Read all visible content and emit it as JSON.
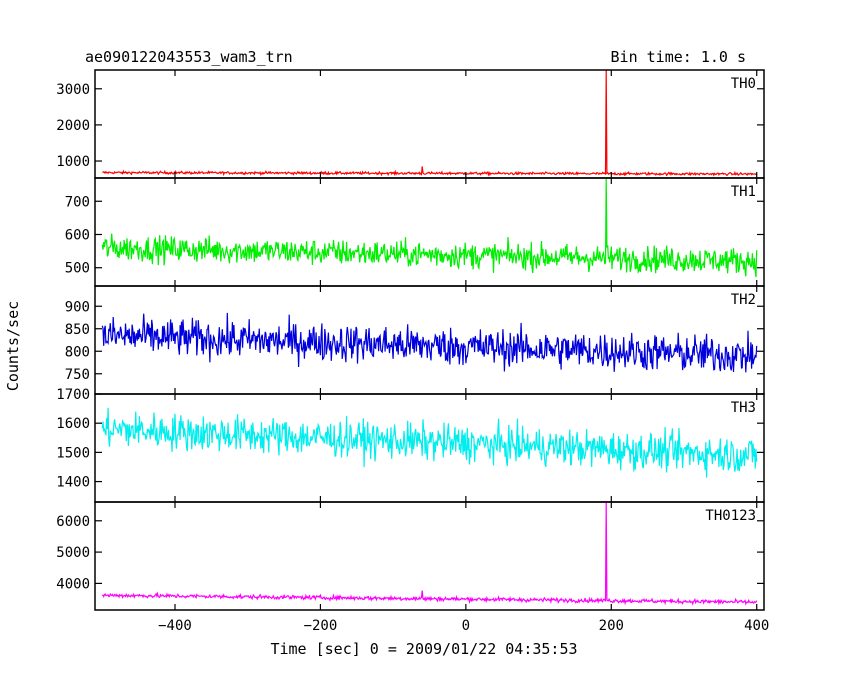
{
  "title_left": "ae090122043553_wam3_trn",
  "title_right": "Bin time: 1.0 s",
  "ylabel": "Counts/sec",
  "xlabel": "Time [sec] 0 = 2009/01/22 04:35:53",
  "chart_data": {
    "type": "line",
    "x_range": [
      -510,
      410
    ],
    "x_ticks": [
      -400,
      -200,
      0,
      200,
      400
    ],
    "x_tick_labels": [
      "−400",
      "−200",
      "0",
      "200",
      "400"
    ],
    "x_data_range": [
      -500,
      400
    ],
    "bin_time": 1.0,
    "grid": false,
    "panels": [
      {
        "name": "TH0",
        "color": "#ff0000",
        "ylim": [
          530,
          3520
        ],
        "y_ticks": [
          1000,
          2000,
          3000
        ],
        "y_tick_labels": [
          "1000",
          "2000",
          "3000"
        ],
        "baseline_start": 680,
        "baseline_end": 640,
        "noise": 25,
        "spikes": [
          {
            "x": -60,
            "y": 850
          },
          {
            "x": 193,
            "y": 3520
          }
        ]
      },
      {
        "name": "TH1",
        "color": "#00ee00",
        "ylim": [
          445,
          770
        ],
        "y_ticks": [
          500,
          600,
          700
        ],
        "y_tick_labels": [
          "500",
          "600",
          "700"
        ],
        "baseline_start": 560,
        "baseline_end": 520,
        "noise": 28,
        "spikes": [
          {
            "x": 193,
            "y": 770
          }
        ]
      },
      {
        "name": "TH2",
        "color": "#0000dd",
        "ylim": [
          705,
          945
        ],
        "y_ticks": [
          750,
          800,
          850,
          900
        ],
        "y_tick_labels": [
          "750",
          "800",
          "850",
          "900"
        ],
        "baseline_start": 835,
        "baseline_end": 790,
        "noise": 30,
        "spikes": []
      },
      {
        "name": "TH3",
        "color": "#00eeee",
        "ylim": [
          1330,
          1700
        ],
        "y_ticks": [
          1400,
          1500,
          1600,
          1700
        ],
        "y_tick_labels": [
          "1400",
          "1500",
          "1600",
          "1700"
        ],
        "baseline_start": 1580,
        "baseline_end": 1490,
        "noise": 45,
        "spikes": []
      },
      {
        "name": "TH0123",
        "color": "#ff00ff",
        "ylim": [
          3150,
          6600
        ],
        "y_ticks": [
          4000,
          5000,
          6000
        ],
        "y_tick_labels": [
          "4000",
          "5000",
          "6000"
        ],
        "baseline_start": 3620,
        "baseline_end": 3400,
        "noise": 45,
        "spikes": [
          {
            "x": -60,
            "y": 3770
          },
          {
            "x": 193,
            "y": 6600
          }
        ]
      }
    ]
  }
}
